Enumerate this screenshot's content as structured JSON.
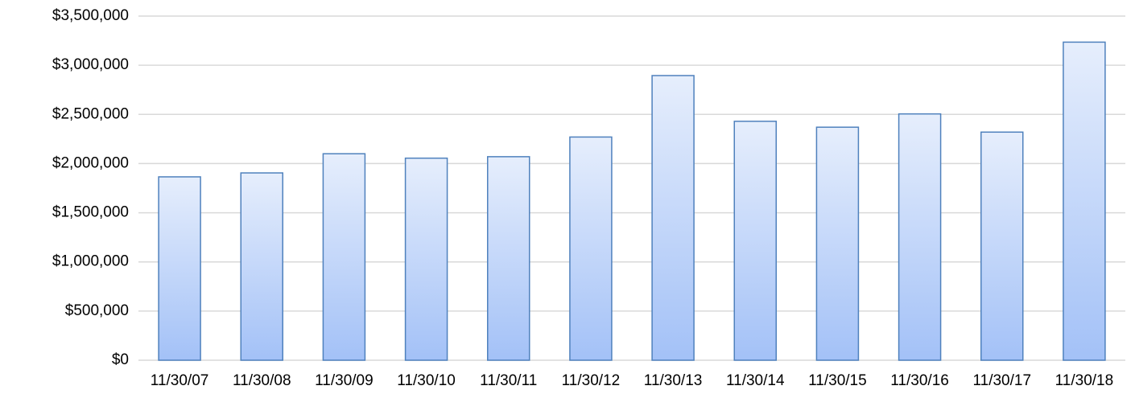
{
  "chart_data": {
    "type": "bar",
    "categories": [
      "11/30/07",
      "11/30/08",
      "11/30/09",
      "11/30/10",
      "11/30/11",
      "11/30/12",
      "11/30/13",
      "11/30/14",
      "11/30/15",
      "11/30/16",
      "11/30/17",
      "11/30/18"
    ],
    "values": [
      1865000,
      1905000,
      2100000,
      2055000,
      2070000,
      2270000,
      2895000,
      2430000,
      2370000,
      2505000,
      2320000,
      3235000
    ],
    "color": "#4f81bd",
    "ylim": [
      0,
      3500000
    ],
    "yticks": [
      {
        "value": 0,
        "label": "$0"
      },
      {
        "value": 500000,
        "label": "$500,000"
      },
      {
        "value": 1000000,
        "label": "$1,000,000"
      },
      {
        "value": 1500000,
        "label": "$1,500,000"
      },
      {
        "value": 2000000,
        "label": "$2,000,000"
      },
      {
        "value": 2500000,
        "label": "$2,500,000"
      },
      {
        "value": 3000000,
        "label": "$3,000,000"
      },
      {
        "value": 3500000,
        "label": "$3,500,000"
      }
    ],
    "grid": true
  }
}
